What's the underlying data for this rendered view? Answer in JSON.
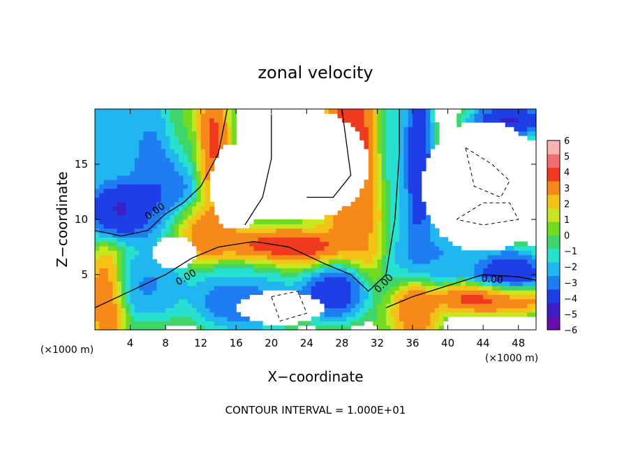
{
  "chart_data": {
    "type": "heatmap",
    "title": "zonal velocity",
    "xlabel": "X−coordinate",
    "ylabel": "Z−coordinate",
    "x_unit": "(×1000 m)",
    "z_unit": "(×1000 m)",
    "footer": "CONTOUR INTERVAL = 1.000E+01",
    "xlim": [
      0,
      50
    ],
    "ylim": [
      0,
      20
    ],
    "x_ticks": [
      "4",
      "8",
      "12",
      "16",
      "20",
      "24",
      "28",
      "32",
      "36",
      "40",
      "44",
      "48"
    ],
    "y_ticks": [
      "5",
      "10",
      "15"
    ],
    "colorbar": {
      "labels": [
        "6",
        "5",
        "4",
        "3",
        "2",
        "1",
        "0",
        "−1",
        "−2",
        "−3",
        "−4",
        "−5",
        "−6"
      ],
      "range": [
        -6,
        6
      ],
      "colors": [
        "#6a0dad",
        "#3d1fc8",
        "#1e3fe6",
        "#1f7df2",
        "#21b6f0",
        "#28e0d0",
        "#3ed66a",
        "#71db21",
        "#c8e61f",
        "#f4c216",
        "#f5891a",
        "#ef3a1f",
        "#f36e6e",
        "#f9b3b3"
      ]
    },
    "contour_labels": [
      "0.00",
      "0.00",
      "0.00",
      "0.00"
    ],
    "field_blobs": [
      {
        "x": 1,
        "z": 18,
        "v": -2.5,
        "sx": 5,
        "sz": 3
      },
      {
        "x": 3,
        "z": 11,
        "v": -5,
        "sx": 3,
        "sz": 2
      },
      {
        "x": 8,
        "z": 14,
        "v": -4,
        "sx": 3,
        "sz": 5
      },
      {
        "x": 10,
        "z": 18,
        "v": 1,
        "sx": 2,
        "sz": 3
      },
      {
        "x": 13,
        "z": 17,
        "v": 4.5,
        "sx": 1.5,
        "sz": 4
      },
      {
        "x": 12,
        "z": 9,
        "v": 4,
        "sx": 3,
        "sz": 2
      },
      {
        "x": 22,
        "z": 7,
        "v": 5,
        "sx": 6,
        "sz": 1.5
      },
      {
        "x": 29,
        "z": 16,
        "v": 4.5,
        "sx": 2.5,
        "sz": 6
      },
      {
        "x": 31,
        "z": 10,
        "v": 3,
        "sx": 2,
        "sz": 4
      },
      {
        "x": 34,
        "z": 14,
        "v": -2,
        "sx": 1.5,
        "sz": 8
      },
      {
        "x": 36.5,
        "z": 15,
        "v": -5,
        "sx": 1.2,
        "sz": 6
      },
      {
        "x": 38,
        "z": 7,
        "v": -3,
        "sx": 4,
        "sz": 2
      },
      {
        "x": 47,
        "z": 5,
        "v": -5,
        "sx": 3,
        "sz": 1.5
      },
      {
        "x": 45,
        "z": 3,
        "v": 4.5,
        "sx": 5,
        "sz": 1
      },
      {
        "x": 1.5,
        "z": 3,
        "v": 4,
        "sx": 1.5,
        "sz": 3
      },
      {
        "x": 6,
        "z": 4,
        "v": -3,
        "sx": 3,
        "sz": 2
      },
      {
        "x": 17,
        "z": 3,
        "v": -4,
        "sx": 4,
        "sz": 2
      },
      {
        "x": 27,
        "z": 4,
        "v": -5,
        "sx": 3,
        "sz": 2
      },
      {
        "x": 36,
        "z": 2,
        "v": 4,
        "sx": 2,
        "sz": 2
      },
      {
        "x": 47,
        "z": 19,
        "v": -5,
        "sx": 3,
        "sz": 1
      },
      {
        "x": 19,
        "z": 5,
        "v": -1.5,
        "sx": 5,
        "sz": 1.5
      }
    ],
    "blank_regions": [
      {
        "x": 24,
        "z": 15,
        "rx": 7,
        "rz": 5
      },
      {
        "x": 44,
        "z": 13,
        "rx": 7,
        "rz": 6
      },
      {
        "x": 16,
        "z": 13,
        "rx": 3,
        "rz": 4
      },
      {
        "x": 9,
        "z": 7,
        "rx": 2.5,
        "rz": 1.5
      },
      {
        "x": 21,
        "z": 2,
        "rx": 5,
        "rz": 1.5
      }
    ]
  }
}
